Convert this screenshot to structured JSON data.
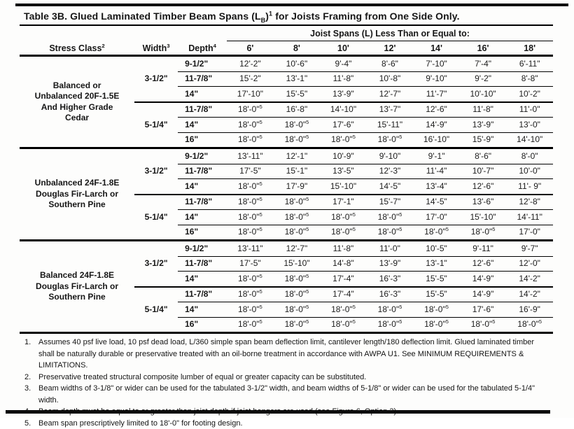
{
  "title": "Table 3B. Glued Laminated Timber Beam Spans (L{_B}){^1} for Joists Framing from One Side Only.",
  "table": {
    "span_group_header": "Joist Spans (L) Less Than or Equal to:",
    "columns": {
      "stress": "Stress Class{^2}",
      "width": "Width{^3}",
      "depth": "Depth{^4}",
      "spans": [
        "6'",
        "8'",
        "10'",
        "12'",
        "14'",
        "16'",
        "18'"
      ]
    },
    "sections": [
      {
        "stress_class": "Balanced or\nUnbalanced 20F-1.5E\nAnd Higher Grade\nCedar",
        "groups": [
          {
            "width": "3-1/2\"",
            "rows": [
              {
                "depth": "9-1/2\"",
                "values": [
                  "12'-2\"",
                  "10'-6\"",
                  "9'-4\"",
                  "8'-6\"",
                  "7'-10\"",
                  "7'-4\"",
                  "6'-11\""
                ]
              },
              {
                "depth": "11-7/8\"",
                "values": [
                  "15'-2\"",
                  "13'-1\"",
                  "11'-8\"",
                  "10'-8\"",
                  "9'-10\"",
                  "9'-2\"",
                  "8'-8\""
                ]
              },
              {
                "depth": "14\"",
                "values": [
                  "17'-10\"",
                  "15'-5\"",
                  "13'-9\"",
                  "12'-7\"",
                  "11'-7\"",
                  "10'-10\"",
                  "10'-2\""
                ]
              }
            ]
          },
          {
            "width": "5-1/4\"",
            "rows": [
              {
                "depth": "11-7/8\"",
                "values": [
                  "18'-0\"{^5}",
                  "16'-8\"",
                  "14'-10\"",
                  "13'-7\"",
                  "12'-6\"",
                  "11'-8\"",
                  "11'-0\""
                ]
              },
              {
                "depth": "14\"",
                "values": [
                  "18'-0\"{^5}",
                  "18'-0\"{^5}",
                  "17'-6\"",
                  "15'-11\"",
                  "14'-9\"",
                  "13'-9\"",
                  "13'-0\""
                ]
              },
              {
                "depth": "16\"",
                "values": [
                  "18'-0\"{^5}",
                  "18'-0\"{^5}",
                  "18'-0\"{^5}",
                  "18'-0\"{^5}",
                  "16'-10\"",
                  "15'-9\"",
                  "14'-10\""
                ]
              }
            ]
          }
        ]
      },
      {
        "stress_class": "Unbalanced 24F-1.8E\nDouglas Fir-Larch or\nSouthern Pine",
        "groups": [
          {
            "width": "3-1/2\"",
            "rows": [
              {
                "depth": "9-1/2\"",
                "values": [
                  "13'-11\"",
                  "12'-1\"",
                  "10'-9\"",
                  "9'-10\"",
                  "9'-1\"",
                  "8'-6\"",
                  "8'-0\""
                ]
              },
              {
                "depth": "11-7/8\"",
                "values": [
                  "17'-5\"",
                  "15'-1\"",
                  "13'-5\"",
                  "12'-3\"",
                  "11'-4\"",
                  "10'-7\"",
                  "10'-0\""
                ]
              },
              {
                "depth": "14\"",
                "values": [
                  "18'-0\"{^5}",
                  "17'-9\"",
                  "15'-10\"",
                  "14'-5\"",
                  "13'-4\"",
                  "12'-6\"",
                  "11'- 9\""
                ]
              }
            ]
          },
          {
            "width": "5-1/4\"",
            "rows": [
              {
                "depth": "11-7/8\"",
                "values": [
                  "18'-0\"{^5}",
                  "18'-0\"{^5}",
                  "17'-1\"",
                  "15'-7\"",
                  "14'-5\"",
                  "13'-6\"",
                  "12'-8\""
                ]
              },
              {
                "depth": "14\"",
                "values": [
                  "18'-0\"{^5}",
                  "18'-0\"{^5}",
                  "18'-0\"{^5}",
                  "18'-0\"{^5}",
                  "17'-0\"",
                  "15'-10\"",
                  "14'-11\""
                ]
              },
              {
                "depth": "16\"",
                "values": [
                  "18'-0\"{^5}",
                  "18'-0\"{^5}",
                  "18'-0\"{^5}",
                  "18'-0\"{^5}",
                  "18'-0\"{^5}",
                  "18'-0\"{^5}",
                  "17'-0\""
                ]
              }
            ]
          }
        ]
      },
      {
        "stress_class": "Balanced 24F-1.8E\nDouglas Fir-Larch or\nSouthern Pine",
        "groups": [
          {
            "width": "3-1/2\"",
            "rows": [
              {
                "depth": "9-1/2\"",
                "values": [
                  "13'-11\"",
                  "12'-7\"",
                  "11'-8\"",
                  "11'-0\"",
                  "10'-5\"",
                  "9'-11\"",
                  "9'-7\""
                ]
              },
              {
                "depth": "11-7/8\"",
                "values": [
                  "17'-5\"",
                  "15'-10\"",
                  "14'-8\"",
                  "13'-9\"",
                  "13'-1\"",
                  "12'-6\"",
                  "12'-0\""
                ]
              },
              {
                "depth": "14\"",
                "values": [
                  "18'-0\"{^5}",
                  "18'-0\"{^5}",
                  "17'-4\"",
                  "16'-3\"",
                  "15'-5\"",
                  "14'-9\"",
                  "14'-2\""
                ]
              }
            ]
          },
          {
            "width": "5-1/4\"",
            "rows": [
              {
                "depth": "11-7/8\"",
                "values": [
                  "18'-0\"{^5}",
                  "18'-0\"{^5}",
                  "17'-4\"",
                  "16'-3\"",
                  "15'-5\"",
                  "14'-9\"",
                  "14'-2\""
                ]
              },
              {
                "depth": "14\"",
                "values": [
                  "18'-0\"{^5}",
                  "18'-0\"{^5}",
                  "18'-0\"{^5}",
                  "18'-0\"{^5}",
                  "18'-0\"{^5}",
                  "17'-6\"",
                  "16'-9\""
                ]
              },
              {
                "depth": "16\"",
                "values": [
                  "18'-0\"{^5}",
                  "18'-0\"{^5}",
                  "18'-0\"{^5}",
                  "18'-0\"{^5}",
                  "18'-0\"{^5}",
                  "18'-0\"{^5}",
                  "18'-0\"{^5}"
                ]
              }
            ]
          }
        ]
      }
    ]
  },
  "footnotes": [
    {
      "num": "1.",
      "text": "Assumes 40 psf live load, 10 psf dead load, L/360 simple span beam deflection limit, cantilever length/180 deflection limit. Glued laminated timber shall be naturally durable or preservative treated with an oil-borne treatment in accordance with AWPA U1. See MINIMUM REQUIREMENTS & LIMITATIONS."
    },
    {
      "num": "2.",
      "text": "Preservative treated structural composite lumber of equal or greater capacity can be substituted."
    },
    {
      "num": "3.",
      "text": "Beam widths of 3-1/8\" or wider can be used for the tabulated 3-1/2\" width, and beam widths of 5-1/8\" or wider can be used for the tabulated 5-1/4\" width."
    },
    {
      "num": "4.",
      "text": "Beam depth must be equal to or greater than joist depth if joist hangers are used (see Figure 6, Option 3)."
    },
    {
      "num": "5.",
      "text": "Beam span prescriptively limited to 18'-0\" for footing design."
    }
  ]
}
